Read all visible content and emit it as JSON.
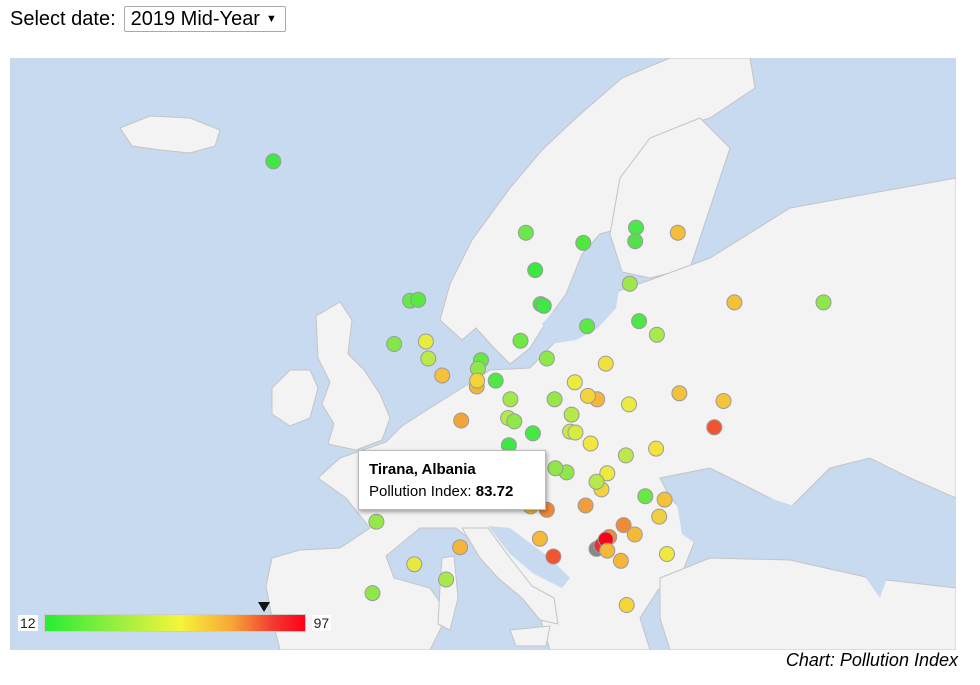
{
  "header": {
    "select_label": "Select date:",
    "selected_date": "2019 Mid-Year"
  },
  "map": {
    "metric": "Pollution Index",
    "colors": {
      "water": "#c8daf0",
      "land": "#f3f3f3",
      "border": "#c4c4c4"
    },
    "markers": [
      {
        "lon": -21.9,
        "lat": 64.1,
        "color": "#3ee845"
      },
      {
        "lon": 10.7,
        "lat": 59.9,
        "color": "#6de84a"
      },
      {
        "lon": 18.1,
        "lat": 59.3,
        "color": "#4fe83f"
      },
      {
        "lon": 24.9,
        "lat": 60.2,
        "color": "#4ae849"
      },
      {
        "lon": 24.8,
        "lat": 59.4,
        "color": "#52e34a"
      },
      {
        "lon": 30.3,
        "lat": 59.9,
        "color": "#f5be3a"
      },
      {
        "lon": 24.1,
        "lat": 56.9,
        "color": "#9ee84a"
      },
      {
        "lon": 11.9,
        "lat": 57.7,
        "color": "#3ae83f"
      },
      {
        "lon": 12.6,
        "lat": 55.7,
        "color": "#3ee83f"
      },
      {
        "lon": 13.0,
        "lat": 55.6,
        "color": "#3fe845"
      },
      {
        "lon": 37.6,
        "lat": 55.8,
        "color": "#f5c03a"
      },
      {
        "lon": 49.1,
        "lat": 55.8,
        "color": "#8fe84a"
      },
      {
        "lon": 25.3,
        "lat": 54.7,
        "color": "#4de845"
      },
      {
        "lon": 27.6,
        "lat": 53.9,
        "color": "#a6ea4b"
      },
      {
        "lon": -4.25,
        "lat": 55.9,
        "color": "#64e84a"
      },
      {
        "lon": -3.2,
        "lat": 55.95,
        "color": "#5ae842"
      },
      {
        "lon": -6.3,
        "lat": 53.35,
        "color": "#80e84a"
      },
      {
        "lon": -2.2,
        "lat": 53.5,
        "color": "#e8ec3f"
      },
      {
        "lon": -1.9,
        "lat": 52.5,
        "color": "#bde84a"
      },
      {
        "lon": -0.1,
        "lat": 51.5,
        "color": "#f5c03a"
      },
      {
        "lon": 4.9,
        "lat": 52.4,
        "color": "#66e845"
      },
      {
        "lon": 4.5,
        "lat": 51.9,
        "color": "#8fe84a"
      },
      {
        "lon": 4.35,
        "lat": 50.85,
        "color": "#f0b83a"
      },
      {
        "lon": 4.4,
        "lat": 51.2,
        "color": "#f6d23a"
      },
      {
        "lon": 10.0,
        "lat": 53.55,
        "color": "#6ee845"
      },
      {
        "lon": 13.4,
        "lat": 52.5,
        "color": "#8de84a"
      },
      {
        "lon": 18.6,
        "lat": 54.4,
        "color": "#5ce845"
      },
      {
        "lon": 17.0,
        "lat": 51.1,
        "color": "#ecec3f"
      },
      {
        "lon": 21.0,
        "lat": 52.2,
        "color": "#f1e13f"
      },
      {
        "lon": 19.9,
        "lat": 50.1,
        "color": "#f5b53a"
      },
      {
        "lon": 18.7,
        "lat": 50.3,
        "color": "#f5d43a"
      },
      {
        "lon": 24.0,
        "lat": 49.8,
        "color": "#eaea42"
      },
      {
        "lon": 30.5,
        "lat": 50.45,
        "color": "#f5c03a"
      },
      {
        "lon": 36.2,
        "lat": 50.0,
        "color": "#f5c43a"
      },
      {
        "lon": 35.0,
        "lat": 48.45,
        "color": "#ee5530"
      },
      {
        "lon": 2.35,
        "lat": 48.85,
        "color": "#f0a43a"
      },
      {
        "lon": 6.8,
        "lat": 51.2,
        "color": "#4fe845"
      },
      {
        "lon": 8.7,
        "lat": 50.1,
        "color": "#a3e84a"
      },
      {
        "lon": 8.4,
        "lat": 49.0,
        "color": "#b5e84a"
      },
      {
        "lon": 9.2,
        "lat": 48.8,
        "color": "#8ee84a"
      },
      {
        "lon": 11.6,
        "lat": 48.1,
        "color": "#46e845"
      },
      {
        "lon": 8.5,
        "lat": 47.4,
        "color": "#3ee845"
      },
      {
        "lon": 14.4,
        "lat": 50.1,
        "color": "#96e84a"
      },
      {
        "lon": 16.6,
        "lat": 49.2,
        "color": "#b5e84a"
      },
      {
        "lon": 16.4,
        "lat": 48.2,
        "color": "#cbe84a"
      },
      {
        "lon": 17.1,
        "lat": 48.15,
        "color": "#d6ec45"
      },
      {
        "lon": 19.05,
        "lat": 47.5,
        "color": "#f2e63f"
      },
      {
        "lon": 23.6,
        "lat": 46.8,
        "color": "#bce84a"
      },
      {
        "lon": 26.1,
        "lat": 44.4,
        "color": "#66e845"
      },
      {
        "lon": 28.6,
        "lat": 44.2,
        "color": "#f5c03a"
      },
      {
        "lon": 27.5,
        "lat": 47.2,
        "color": "#f4e23f"
      },
      {
        "lon": 20.45,
        "lat": 44.8,
        "color": "#f4d43a"
      },
      {
        "lon": 21.2,
        "lat": 45.75,
        "color": "#edea3f"
      },
      {
        "lon": 19.8,
        "lat": 45.25,
        "color": "#b6ea4b"
      },
      {
        "lon": 18.4,
        "lat": 43.85,
        "color": "#f29d3a"
      },
      {
        "lon": 23.3,
        "lat": 42.7,
        "color": "#f08a35"
      },
      {
        "lon": 27.9,
        "lat": 43.2,
        "color": "#f0d03f"
      },
      {
        "lon": 24.75,
        "lat": 42.15,
        "color": "#f5b93a"
      },
      {
        "lon": 21.45,
        "lat": 42.0,
        "color": "#f08a35"
      },
      {
        "lon": 19.8,
        "lat": 41.3,
        "color": "#888888"
      },
      {
        "lon": 20.45,
        "lat": 41.5,
        "color": "#e83030"
      },
      {
        "lon": 21.0,
        "lat": 41.85,
        "color": "#ff0018"
      },
      {
        "lon": 21.2,
        "lat": 41.2,
        "color": "#f2b83a"
      },
      {
        "lon": 22.95,
        "lat": 40.6,
        "color": "#f5b53a"
      },
      {
        "lon": 23.7,
        "lat": 38.0,
        "color": "#f5d63a"
      },
      {
        "lon": 28.9,
        "lat": 41.0,
        "color": "#f0e83f"
      },
      {
        "lon": 15.95,
        "lat": 45.8,
        "color": "#8ee84a"
      },
      {
        "lon": 14.5,
        "lat": 46.05,
        "color": "#8ee84a"
      },
      {
        "lon": 14.25,
        "lat": 40.85,
        "color": "#ee5530"
      },
      {
        "lon": 12.5,
        "lat": 41.9,
        "color": "#f5b93a"
      },
      {
        "lon": 7.7,
        "lat": 45.1,
        "color": "#f6d23a"
      },
      {
        "lon": 9.2,
        "lat": 45.5,
        "color": "#f0a43a"
      },
      {
        "lon": 11.3,
        "lat": 43.8,
        "color": "#f5be3a"
      },
      {
        "lon": 2.2,
        "lat": 41.4,
        "color": "#f5b43a"
      },
      {
        "lon": -8.6,
        "lat": 42.9,
        "color": "#96e84a"
      },
      {
        "lon": -3.7,
        "lat": 40.4,
        "color": "#e8e842"
      },
      {
        "lon": 0.4,
        "lat": 39.5,
        "color": "#a8e84a"
      },
      {
        "lon": -9.1,
        "lat": 38.7,
        "color": "#8ee84a"
      },
      {
        "lon": 13.4,
        "lat": 43.6,
        "color": "#f08835"
      }
    ]
  },
  "tooltip": {
    "title": "Tirana, Albania",
    "label": "Pollution Index:",
    "value": "83.72"
  },
  "legend": {
    "min": "12",
    "max": "97",
    "pointer_value": 83.72
  },
  "credit": "Chart: Pollution Index"
}
